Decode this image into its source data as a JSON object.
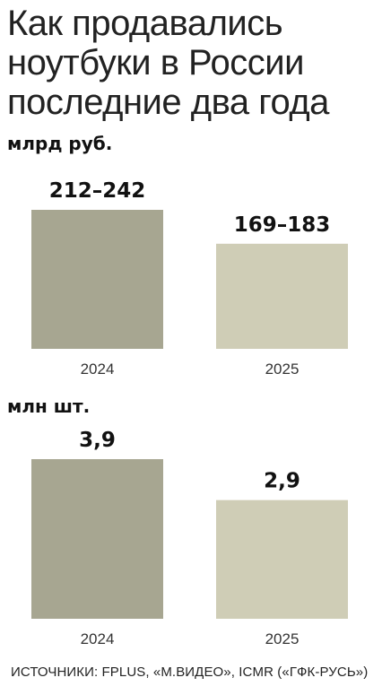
{
  "title": "Как продавались ноутбуки в России последние два года",
  "source": "ИСТОЧНИКИ: FPLUS, «М.ВИДЕО», ICMR («ГФК-РУСЬ»)",
  "colors": {
    "bar_2024": "#a7a691",
    "bar_2025": "#cfcdb6"
  },
  "chart_data": [
    {
      "type": "bar",
      "unit": "млрд руб.",
      "categories": [
        "2024",
        "2025"
      ],
      "values": [
        242,
        183
      ],
      "value_labels": [
        "212–242",
        "169–183"
      ],
      "ylim": [
        0,
        242
      ]
    },
    {
      "type": "bar",
      "unit": "млн шт.",
      "categories": [
        "2024",
        "2025"
      ],
      "values": [
        3.9,
        2.9
      ],
      "value_labels": [
        "3,9",
        "2,9"
      ],
      "ylim": [
        0,
        3.9
      ]
    }
  ]
}
